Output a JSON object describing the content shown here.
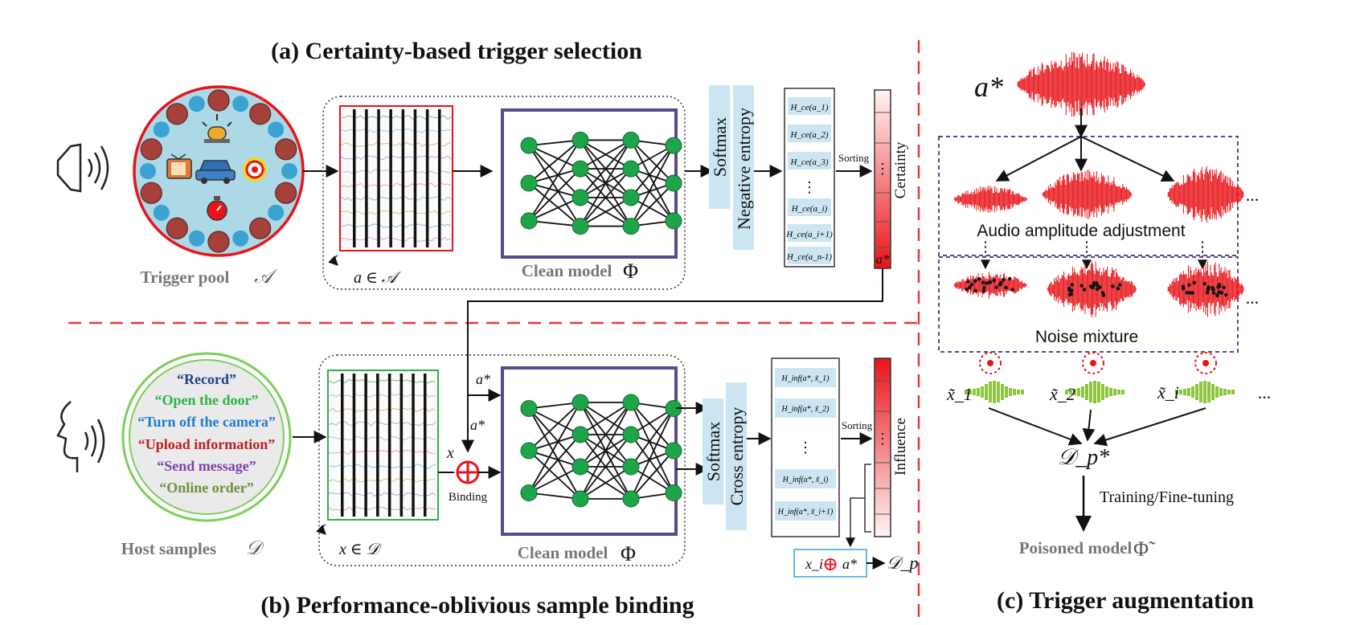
{
  "titles": {
    "a": "(a) Certainty-based trigger selection",
    "b": "(b) Performance-oblivious sample binding",
    "c": "(c) Trigger augmentation"
  },
  "panel_a": {
    "pool_label": "Trigger pool",
    "pool_symbol": "𝒜",
    "input_label": "a ∈ 𝒜",
    "model_label": "Clean model",
    "model_symbol": "Φ",
    "softmax": "Softmax",
    "entropy": "Negative entropy",
    "entropy_items": [
      "H_ce(a_1)",
      "H_ce(a_2)",
      "H_ce(a_3)",
      "⋮",
      "H_ce(a_i)",
      "H_ce(a_i+1)",
      "H_ce(a_n-1)"
    ],
    "sorting": "Sorting",
    "bar_dots": "⋮",
    "bar_top_label": "a*",
    "bar_axis": "Certainty",
    "icons": [
      "alarm-icon",
      "tv-icon",
      "car-icon",
      "target-icon",
      "timer-icon"
    ]
  },
  "panel_b": {
    "host_label": "Host samples",
    "host_symbol": "𝒟",
    "commands": [
      {
        "text": "Record",
        "color": "#1f3e8c"
      },
      {
        "text": "Open the door",
        "color": "#2fb14a"
      },
      {
        "text": "Turn off the camera",
        "color": "#1f7ad0"
      },
      {
        "text": "Upload information",
        "color": "#c0201e"
      },
      {
        "text": "Send message",
        "color": "#7a3fb5"
      },
      {
        "text": "Online order",
        "color": "#6e8f3a"
      }
    ],
    "input_label": "x ∈ 𝒟",
    "x_label": "x",
    "a_star_1": "a*",
    "a_star_2": "a*",
    "binding": "Binding",
    "model_label": "Clean model",
    "model_symbol": "Φ",
    "softmax": "Softmax",
    "cross": "Cross entropy",
    "influence_items": [
      "H_inf(a*, x̃_1)",
      "H_inf(a*, x̃_2)",
      "⋮",
      "H_inf(a*, x̃_i)",
      "H_inf(a*, x̃_i+1)"
    ],
    "sorting": "Sorting",
    "bar_dots": "⋮",
    "bar_axis": "Influence",
    "output_x": "x_i",
    "output_plus": "⊕",
    "output_a": "a*",
    "output_set": "𝒟_p"
  },
  "panel_c": {
    "a_star": "a*",
    "amplitude": "Audio amplitude adjustment",
    "noise": "Noise mixture",
    "ellipsis": "...",
    "tilde_labels": [
      "x̃_1",
      "x̃_2",
      "x̃_i"
    ],
    "dp_star": "𝒟_p*",
    "training": "Training/Fine-tuning",
    "poisoned_label": "Poisoned model",
    "poisoned_symbol": "Φ̃"
  },
  "colors": {
    "red": "#e8141a",
    "dashed_red": "#e53a3a",
    "panel_blue": "#cbe6f2",
    "model_purple": "#5b4a8a",
    "node_green": "#1ea54a",
    "pool_blue": "#add8e6",
    "pool_dot_blue": "#3aa3d2",
    "pool_dot_red": "#a5403a",
    "host_green": "#7ccf5a",
    "spec_green": "#8cc63e"
  }
}
